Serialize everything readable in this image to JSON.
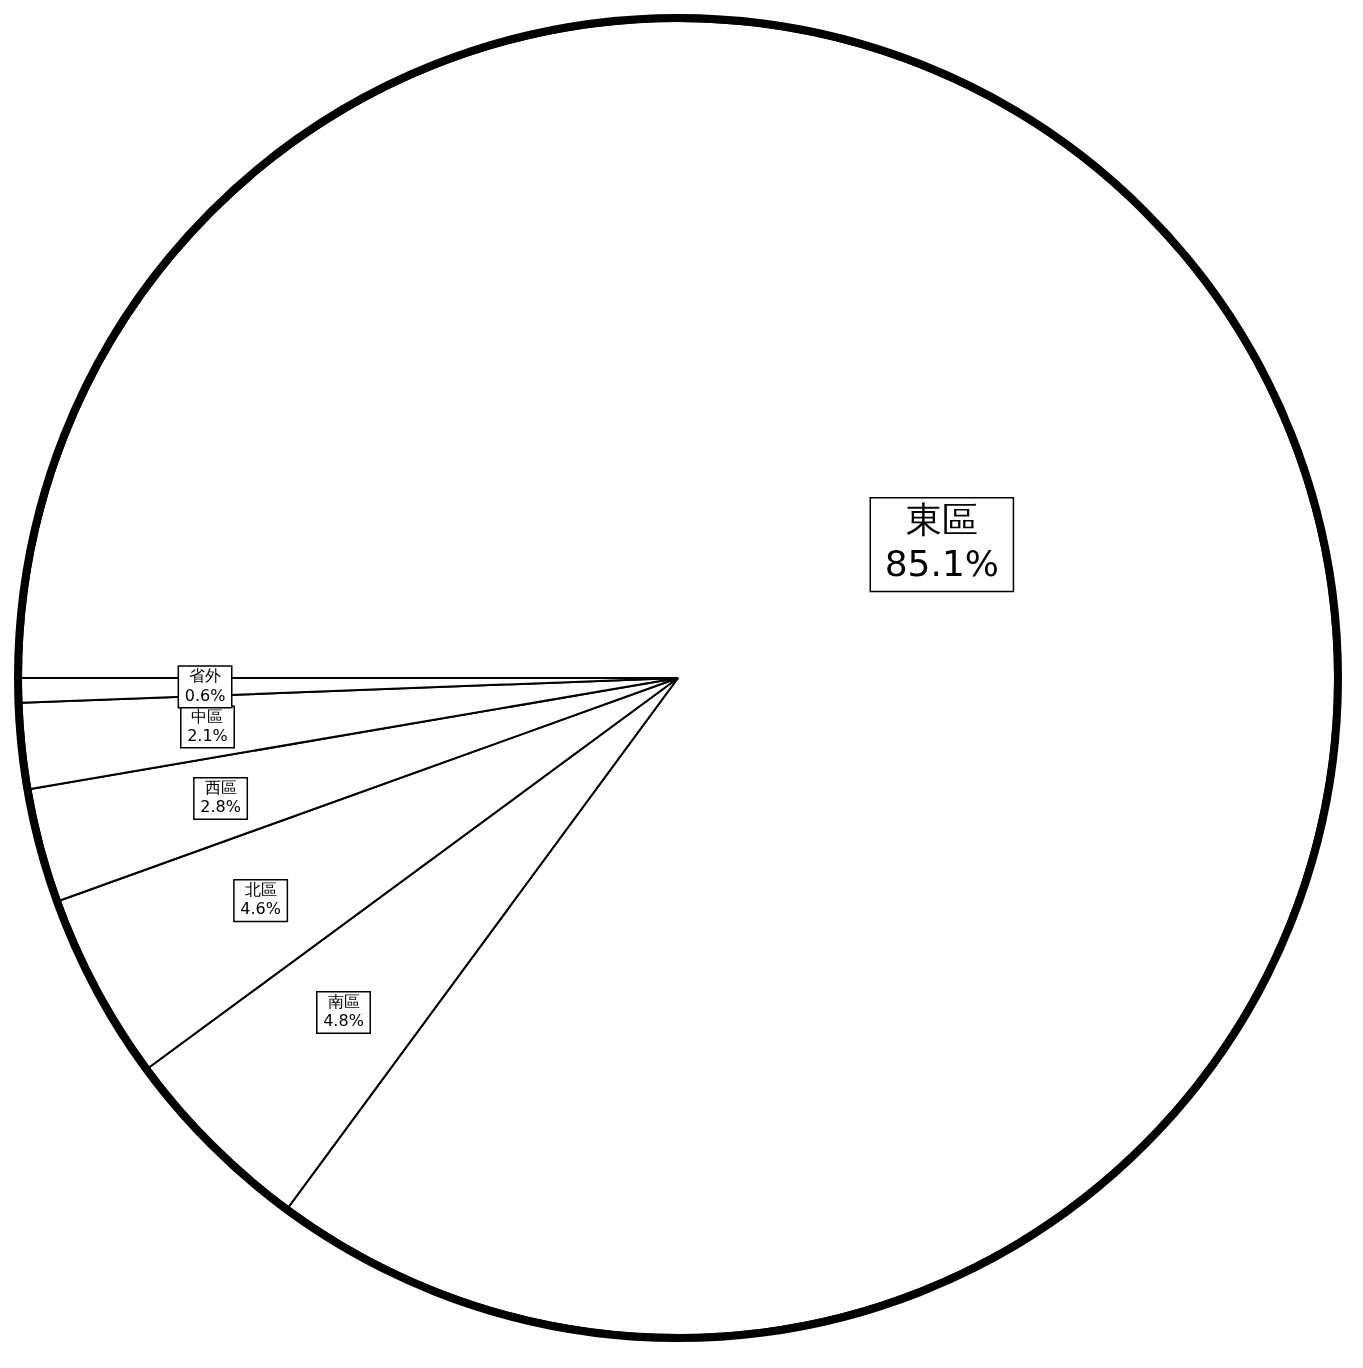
{
  "chart_data": {
    "type": "pie",
    "categories": [
      "東區",
      "南區",
      "北區",
      "西區",
      "中區",
      "省外"
    ],
    "values": [
      85.1,
      4.8,
      4.6,
      2.8,
      2.1,
      0.6
    ],
    "value_labels": [
      "85.1%",
      "4.8%",
      "4.6%",
      "2.8%",
      "2.1%",
      "0.6%"
    ],
    "colors": [
      "#ffffff",
      "#ffffff",
      "#ffffff",
      "#ffffff",
      "#ffffff",
      "#ffffff"
    ],
    "legend": false
  }
}
